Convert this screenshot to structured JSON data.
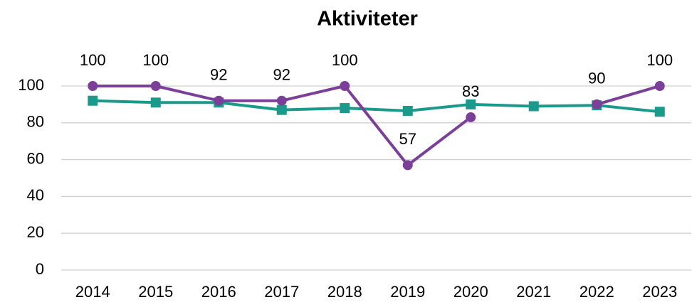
{
  "chart_data": {
    "type": "line",
    "title": "Aktiviteter",
    "categories": [
      "2014",
      "2015",
      "2016",
      "2017",
      "2018",
      "2019",
      "2020",
      "2021",
      "2022",
      "2023"
    ],
    "series": [
      {
        "color": "#1a9a8b",
        "marker": "square",
        "values": [
          92,
          91,
          91,
          87,
          88,
          86.5,
          90,
          89,
          89.5,
          86
        ]
      },
      {
        "color": "#7b3f99",
        "marker": "circle",
        "data_labels": true,
        "values": [
          100,
          100,
          92,
          92,
          100,
          57,
          83,
          null,
          90,
          100
        ]
      }
    ],
    "ylim": [
      0,
      100
    ],
    "yticks": [
      0,
      20,
      40,
      60,
      80,
      100
    ],
    "grid": true
  }
}
